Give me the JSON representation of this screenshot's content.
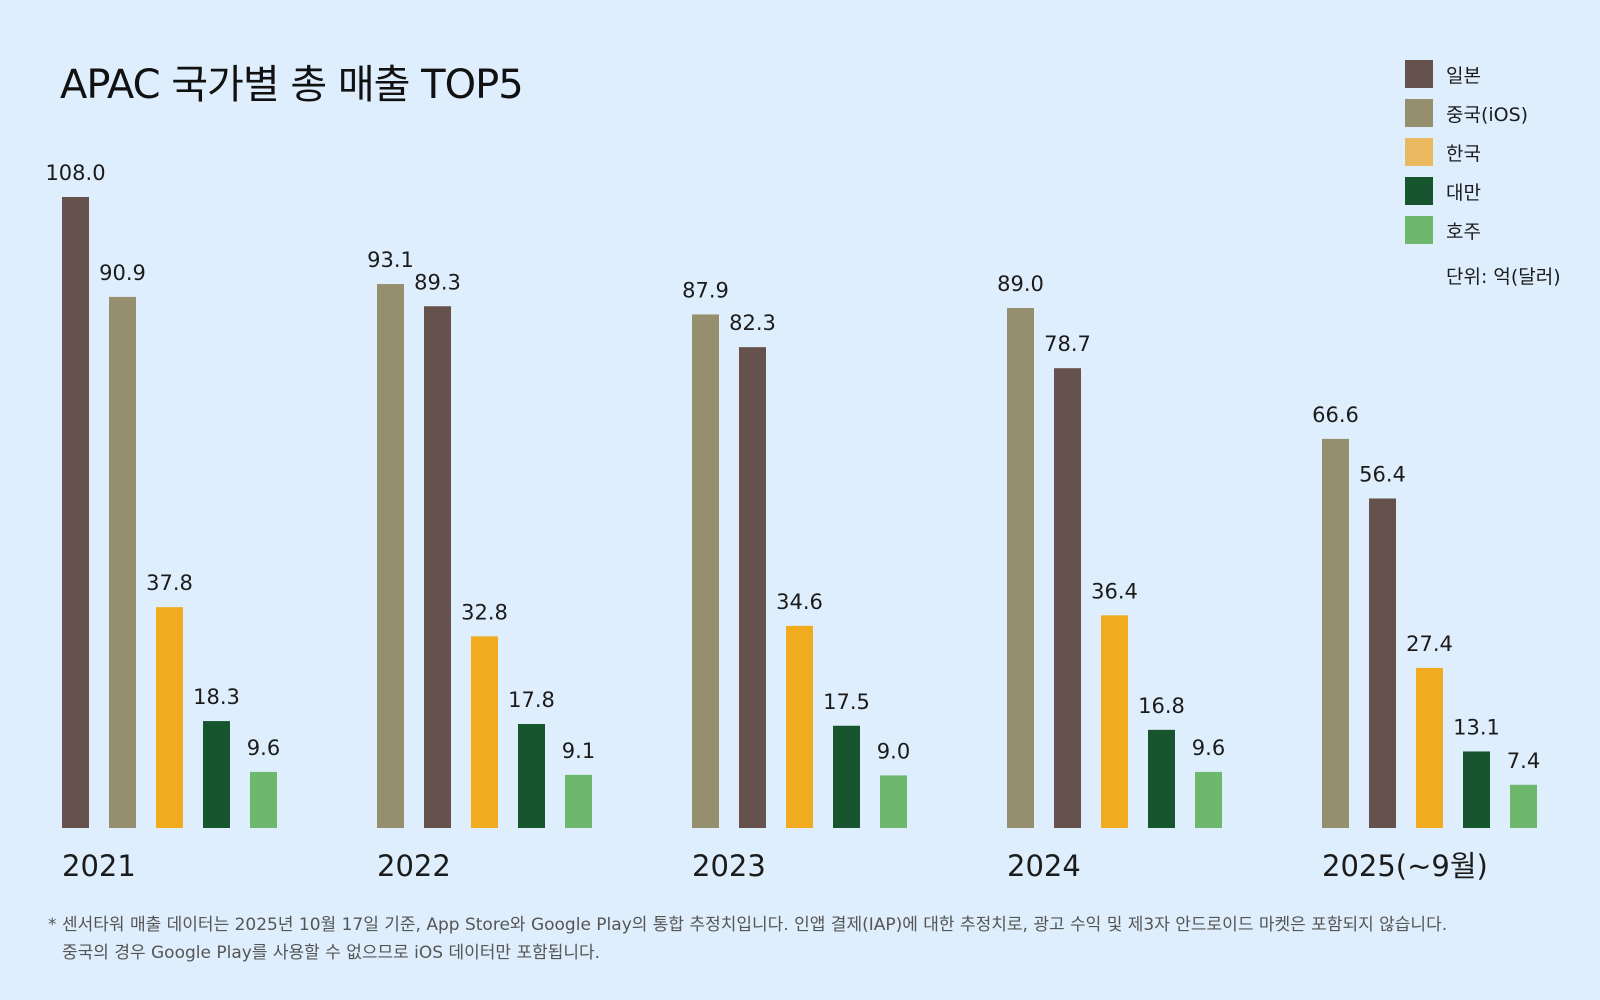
{
  "title": "APAC 국가별 총 매출 TOP5",
  "legend": {
    "items": [
      {
        "label": "일본",
        "color": "#66524c"
      },
      {
        "label": "중국(iOS)",
        "color": "#968f6e"
      },
      {
        "label": "한국",
        "color": "#e9b85f"
      },
      {
        "label": "대만",
        "color": "#17552e"
      },
      {
        "label": "호주",
        "color": "#6db86d"
      }
    ],
    "unit": "단위: 억(달러)"
  },
  "chart_data": {
    "type": "bar",
    "title": "APAC 국가별 총 매출 TOP5",
    "xlabel": "",
    "ylabel": "",
    "unit": "단위: 억(달러)",
    "ylim": [
      0,
      108
    ],
    "grid": false,
    "legend_position": "top-right",
    "groups": [
      {
        "label": "2021",
        "bars": [
          {
            "country": "일본",
            "value": 108.0,
            "label": "108.0"
          },
          {
            "country": "중국(iOS)",
            "value": 90.9,
            "label": "90.9"
          },
          {
            "country": "한국",
            "value": 37.8,
            "label": "37.8"
          },
          {
            "country": "대만",
            "value": 18.3,
            "label": "18.3"
          },
          {
            "country": "호주",
            "value": 9.6,
            "label": "9.6"
          }
        ]
      },
      {
        "label": "2022",
        "bars": [
          {
            "country": "중국(iOS)",
            "value": 93.1,
            "label": "93.1"
          },
          {
            "country": "일본",
            "value": 89.3,
            "label": "89.3"
          },
          {
            "country": "한국",
            "value": 32.8,
            "label": "32.8"
          },
          {
            "country": "대만",
            "value": 17.8,
            "label": "17.8"
          },
          {
            "country": "호주",
            "value": 9.1,
            "label": "9.1"
          }
        ]
      },
      {
        "label": "2023",
        "bars": [
          {
            "country": "중국(iOS)",
            "value": 87.9,
            "label": "87.9"
          },
          {
            "country": "일본",
            "value": 82.3,
            "label": "82.3"
          },
          {
            "country": "한국",
            "value": 34.6,
            "label": "34.6"
          },
          {
            "country": "대만",
            "value": 17.5,
            "label": "17.5"
          },
          {
            "country": "호주",
            "value": 9.0,
            "label": "9.0"
          }
        ]
      },
      {
        "label": "2024",
        "bars": [
          {
            "country": "중국(iOS)",
            "value": 89.0,
            "label": "89.0"
          },
          {
            "country": "일본",
            "value": 78.7,
            "label": "78.7"
          },
          {
            "country": "한국",
            "value": 36.4,
            "label": "36.4"
          },
          {
            "country": "대만",
            "value": 16.8,
            "label": "16.8"
          },
          {
            "country": "호주",
            "value": 9.6,
            "label": "9.6"
          }
        ]
      },
      {
        "label": "2025(~9월)",
        "bars": [
          {
            "country": "중국(iOS)",
            "value": 66.6,
            "label": "66.6"
          },
          {
            "country": "일본",
            "value": 56.4,
            "label": "56.4"
          },
          {
            "country": "한국",
            "value": 27.4,
            "label": "27.4"
          },
          {
            "country": "대만",
            "value": 13.1,
            "label": "13.1"
          },
          {
            "country": "호주",
            "value": 7.4,
            "label": "7.4"
          }
        ]
      }
    ]
  },
  "bar_colors": {
    "일본": "#66524c",
    "중국(iOS)": "#968f6e",
    "한국": "#f0ab1f",
    "대만": "#17552e",
    "호주": "#6db86d"
  },
  "footnote": {
    "star": "*",
    "line1": "센서타워 매출 데이터는 2025년 10월 17일 기준, App Store와 Google Play의 통합 추정치입니다. 인앱 결제(IAP)에 대한 추정치로, 광고 수익 및 제3자 안드로이드 마켓은 포함되지 않습니다.",
    "line2": "중국의 경우 Google Play를 사용할 수 없으므로 iOS 데이터만 포함됩니다."
  }
}
